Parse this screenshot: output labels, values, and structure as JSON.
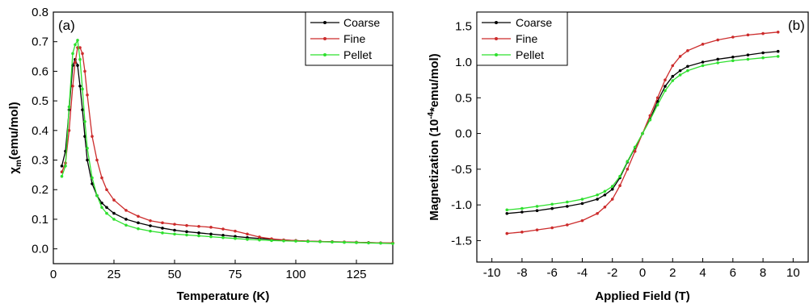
{
  "chart_data": [
    {
      "type": "line",
      "panel_label": "(a)",
      "title": "",
      "xlabel": "Temperature (K)",
      "ylabel": "χ_m(emu/mol)",
      "ylabel_main": "χ",
      "ylabel_sub": "m",
      "ylabel_rest": "(emu/mol)",
      "xlim": [
        0,
        140
      ],
      "ylim": [
        -0.05,
        0.8
      ],
      "xticks": [
        0,
        25,
        50,
        75,
        100,
        125
      ],
      "yticks": [
        0.0,
        0.1,
        0.2,
        0.3,
        0.4,
        0.5,
        0.6,
        0.7,
        0.8
      ],
      "xtick_labels": [
        "0",
        "25",
        "50",
        "75",
        "100",
        "125"
      ],
      "ytick_labels": [
        "0.0",
        "0.1",
        "0.2",
        "0.3",
        "0.4",
        "0.5",
        "0.6",
        "0.7",
        "0.8"
      ],
      "legend_position": "top-right",
      "grid": false,
      "series": [
        {
          "name": "Coarse",
          "color": "#000000",
          "x": [
            3.5,
            5,
            6.5,
            8,
            9,
            10,
            11,
            12,
            13,
            14,
            16,
            18,
            20,
            22,
            25,
            30,
            35,
            40,
            45,
            50,
            55,
            60,
            65,
            70,
            75,
            80,
            85,
            90,
            95,
            100,
            105,
            110,
            115,
            120,
            125,
            130,
            135,
            140
          ],
          "y": [
            0.28,
            0.33,
            0.47,
            0.62,
            0.64,
            0.62,
            0.55,
            0.47,
            0.38,
            0.3,
            0.22,
            0.18,
            0.155,
            0.14,
            0.12,
            0.1,
            0.088,
            0.078,
            0.07,
            0.063,
            0.058,
            0.054,
            0.05,
            0.046,
            0.042,
            0.038,
            0.035,
            0.032,
            0.03,
            0.028,
            0.026,
            0.025,
            0.024,
            0.023,
            0.022,
            0.021,
            0.02,
            0.019
          ]
        },
        {
          "name": "Fine",
          "color": "#cc2b2b",
          "x": [
            3.5,
            5,
            6.5,
            8,
            9,
            10,
            11,
            12,
            13,
            14,
            16,
            18,
            20,
            22,
            25,
            30,
            35,
            40,
            45,
            50,
            55,
            60,
            65,
            70,
            75,
            80,
            85,
            90,
            95,
            100,
            105,
            110,
            115,
            120,
            125,
            130,
            135,
            140
          ],
          "y": [
            0.26,
            0.29,
            0.4,
            0.55,
            0.63,
            0.68,
            0.68,
            0.66,
            0.6,
            0.52,
            0.38,
            0.3,
            0.24,
            0.2,
            0.165,
            0.13,
            0.11,
            0.095,
            0.088,
            0.083,
            0.079,
            0.076,
            0.073,
            0.067,
            0.06,
            0.05,
            0.04,
            0.034,
            0.03,
            0.028,
            0.026,
            0.025,
            0.024,
            0.023,
            0.022,
            0.021,
            0.02,
            0.02
          ]
        },
        {
          "name": "Pellet",
          "color": "#2ee02e",
          "x": [
            3.5,
            5,
            6.5,
            8,
            9,
            10,
            11,
            12,
            13,
            14,
            16,
            18,
            20,
            22,
            25,
            30,
            35,
            40,
            45,
            50,
            55,
            60,
            65,
            70,
            75,
            80,
            85,
            90,
            95,
            100,
            105,
            110,
            115,
            120,
            125,
            130,
            135,
            140
          ],
          "y": [
            0.245,
            0.28,
            0.48,
            0.66,
            0.69,
            0.705,
            0.64,
            0.54,
            0.43,
            0.34,
            0.24,
            0.18,
            0.14,
            0.12,
            0.1,
            0.08,
            0.068,
            0.06,
            0.054,
            0.05,
            0.047,
            0.044,
            0.041,
            0.038,
            0.035,
            0.032,
            0.03,
            0.028,
            0.027,
            0.026,
            0.025,
            0.024,
            0.023,
            0.022,
            0.021,
            0.02,
            0.019,
            0.018
          ]
        }
      ]
    },
    {
      "type": "line",
      "panel_label": "(b)",
      "title": "",
      "xlabel": "Applied Field (T)",
      "ylabel": "Magnetization (10^-4*emu/mol)",
      "ylabel_pre": "Magnetization (10",
      "ylabel_sup": "-4",
      "ylabel_post": "*emu/mol)",
      "xlim": [
        -11,
        11
      ],
      "ylim": [
        -1.8,
        1.7
      ],
      "xticks": [
        -10,
        -8,
        -6,
        -4,
        -2,
        0,
        2,
        4,
        6,
        8,
        10
      ],
      "yticks": [
        -1.5,
        -1.0,
        -0.5,
        0.0,
        0.5,
        1.0,
        1.5
      ],
      "xtick_labels": [
        "-10",
        "-8",
        "-6",
        "-4",
        "-2",
        "0",
        "2",
        "4",
        "6",
        "8",
        "10"
      ],
      "ytick_labels": [
        "-1.5",
        "-1.0",
        "-0.5",
        "0.0",
        "0.5",
        "1.0",
        "1.5"
      ],
      "legend_position": "top-left",
      "grid": false,
      "series": [
        {
          "name": "Coarse",
          "color": "#000000",
          "x": [
            -9,
            -8,
            -7,
            -6,
            -5,
            -4,
            -3,
            -2.5,
            -2,
            -1.5,
            -1,
            -0.5,
            0,
            0.5,
            1,
            1.5,
            2,
            2.5,
            3,
            4,
            5,
            6,
            7,
            8,
            9
          ],
          "y": [
            -1.12,
            -1.1,
            -1.08,
            -1.05,
            -1.02,
            -0.98,
            -0.92,
            -0.86,
            -0.78,
            -0.62,
            -0.4,
            -0.2,
            0.0,
            0.2,
            0.45,
            0.66,
            0.8,
            0.88,
            0.94,
            1.0,
            1.04,
            1.07,
            1.1,
            1.13,
            1.15
          ]
        },
        {
          "name": "Fine",
          "color": "#cc2b2b",
          "x": [
            -9,
            -8,
            -7,
            -6,
            -5,
            -4,
            -3,
            -2.5,
            -2,
            -1.5,
            -1,
            -0.5,
            0,
            0.5,
            1,
            1.5,
            2,
            2.5,
            3,
            4,
            5,
            6,
            7,
            8,
            9
          ],
          "y": [
            -1.4,
            -1.38,
            -1.35,
            -1.32,
            -1.28,
            -1.22,
            -1.12,
            -1.03,
            -0.92,
            -0.73,
            -0.5,
            -0.25,
            0.0,
            0.25,
            0.5,
            0.75,
            0.95,
            1.08,
            1.16,
            1.25,
            1.31,
            1.35,
            1.38,
            1.4,
            1.42
          ]
        },
        {
          "name": "Pellet",
          "color": "#2ee02e",
          "x": [
            -9,
            -8,
            -7,
            -6,
            -5,
            -4,
            -3,
            -2.5,
            -2,
            -1.5,
            -1,
            -0.5,
            0,
            0.5,
            1,
            1.5,
            2,
            2.5,
            3,
            4,
            5,
            6,
            7,
            8,
            9
          ],
          "y": [
            -1.07,
            -1.05,
            -1.02,
            -0.99,
            -0.96,
            -0.92,
            -0.86,
            -0.81,
            -0.74,
            -0.6,
            -0.39,
            -0.19,
            0.0,
            0.19,
            0.4,
            0.6,
            0.74,
            0.82,
            0.88,
            0.95,
            0.99,
            1.02,
            1.04,
            1.06,
            1.08
          ]
        }
      ]
    }
  ]
}
